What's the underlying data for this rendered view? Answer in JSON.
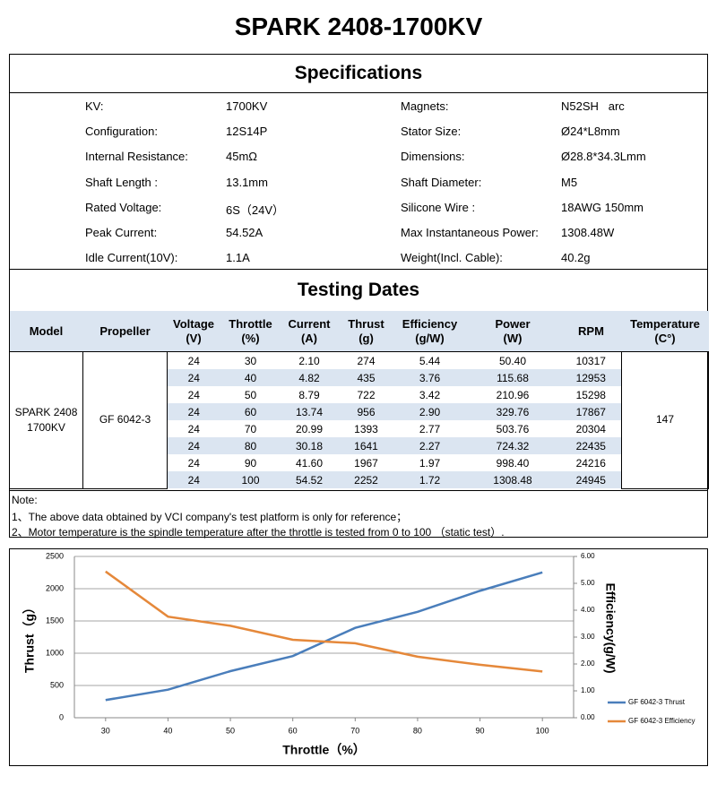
{
  "title": "SPARK 2408-1700KV",
  "specifications": {
    "title": "Specifications",
    "rows": [
      [
        "KV:",
        "1700KV",
        "Magnets:",
        "N52SH   arc"
      ],
      [
        "Configuration:",
        "12S14P",
        "Stator Size:",
        "Ø24*L8mm"
      ],
      [
        "Internal Resistance:",
        "45mΩ",
        "Dimensions:",
        "Ø28.8*34.3Lmm"
      ],
      [
        "Shaft Length :",
        "13.1mm",
        "Shaft Diameter:",
        "M5"
      ],
      [
        "Rated Voltage:",
        "6S（24V）",
        "Silicone Wire :",
        "18AWG 150mm"
      ],
      [
        "Peak Current:",
        "54.52A",
        "Max Instantaneous Power:",
        "1308.48W"
      ],
      [
        "Idle Current(10V):",
        "1.1A",
        "Weight(Incl. Cable):",
        "40.2g"
      ]
    ]
  },
  "testing": {
    "title": "Testing Dates",
    "headers": [
      "Model",
      "Propeller",
      "Voltage\n(V)",
      "Throttle\n(%)",
      "Current\n(A)",
      "Thrust\n(g)",
      "Efficiency\n(g/W)",
      "Power\n(W)",
      "RPM",
      "Temperature\n(C°)"
    ],
    "model": "SPARK 2408\n1700KV",
    "propeller": "GF 6042-3",
    "temperature": "147",
    "rows": [
      [
        "24",
        "30",
        "2.10",
        "274",
        "5.44",
        "50.40",
        "10317"
      ],
      [
        "24",
        "40",
        "4.82",
        "435",
        "3.76",
        "115.68",
        "12953"
      ],
      [
        "24",
        "50",
        "8.79",
        "722",
        "3.42",
        "210.96",
        "15298"
      ],
      [
        "24",
        "60",
        "13.74",
        "956",
        "2.90",
        "329.76",
        "17867"
      ],
      [
        "24",
        "70",
        "20.99",
        "1393",
        "2.77",
        "503.76",
        "20304"
      ],
      [
        "24",
        "80",
        "30.18",
        "1641",
        "2.27",
        "724.32",
        "22435"
      ],
      [
        "24",
        "90",
        "41.60",
        "1967",
        "1.97",
        "998.40",
        "24216"
      ],
      [
        "24",
        "100",
        "54.52",
        "2252",
        "1.72",
        "1308.48",
        "24945"
      ]
    ]
  },
  "notes": {
    "label": "Note:",
    "lines": [
      "1、The above data obtained by VCI company's test platform is only for reference；",
      "2、Motor temperature is the spindle temperature after the throttle is tested from 0 to 100 （static test）."
    ]
  },
  "chart_data": {
    "type": "line",
    "x": [
      30,
      40,
      50,
      60,
      70,
      80,
      90,
      100
    ],
    "xlim": [
      25,
      105
    ],
    "xticks": [
      30,
      40,
      50,
      60,
      70,
      80,
      90,
      100
    ],
    "xlabel": "Throttle（%）",
    "ylabel": "Thrust（g）",
    "y2label": "Efficiency(g/W)",
    "ylim": [
      0,
      2500
    ],
    "yticks": [
      0,
      500,
      1000,
      1500,
      2000,
      2500
    ],
    "y2lim": [
      0,
      6
    ],
    "y2ticks": [
      {
        "value": 0,
        "label": "0.00"
      },
      {
        "value": 1,
        "label": "1.00"
      },
      {
        "value": 2,
        "label": "2.00"
      },
      {
        "value": 3,
        "label": "3.00"
      },
      {
        "value": 4,
        "label": "4.00"
      },
      {
        "value": 5,
        "label": "5.00"
      },
      {
        "value": 6,
        "label": "6.00"
      }
    ],
    "grid": true,
    "legend": "right",
    "series": [
      {
        "name": "GF 6042-3 Thrust",
        "color": "#4a7ebb",
        "values": [
          274,
          435,
          722,
          956,
          1393,
          1641,
          1967,
          2252
        ]
      },
      {
        "name": "GF 6042-3 Efficiency",
        "color": "#e5883a",
        "axis": "y2",
        "values": [
          5.44,
          3.76,
          3.42,
          2.9,
          2.77,
          2.27,
          1.97,
          1.72
        ]
      }
    ]
  }
}
